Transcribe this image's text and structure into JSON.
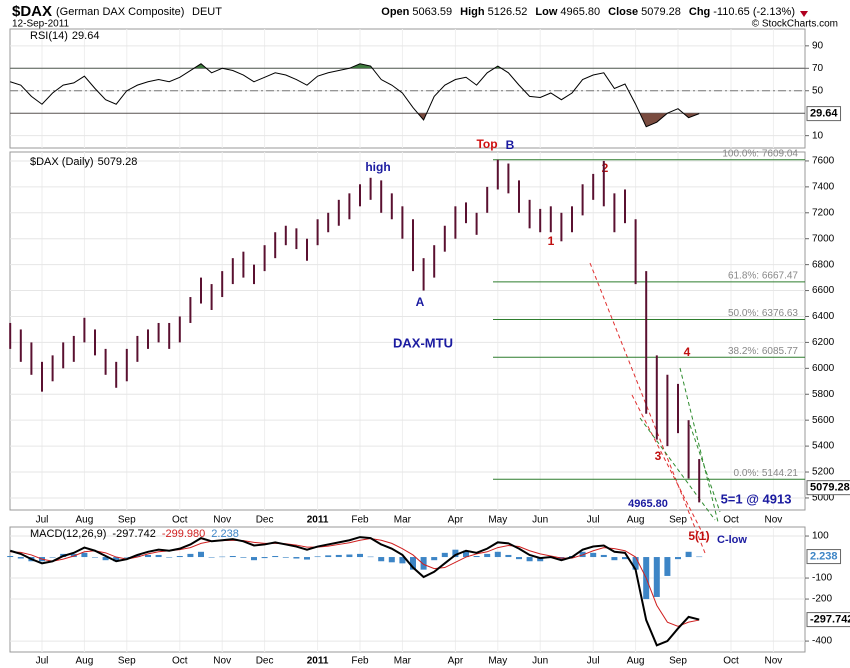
{
  "header": {
    "symbol": "$DAX",
    "name": "(German DAX Composite)",
    "exchange": "DEUT",
    "date": "12-Sep-2011",
    "source": "© StockCharts.com",
    "fields": [
      {
        "label": "Open",
        "value": "5063.59"
      },
      {
        "label": "High",
        "value": "5126.52"
      },
      {
        "label": "Low",
        "value": "4965.80"
      },
      {
        "label": "Close",
        "value": "5079.28"
      },
      {
        "label": "Chg",
        "value": "-110.65 (-2.13%)"
      }
    ]
  },
  "annotations": {
    "top": "Top",
    "b": "B",
    "high": "high",
    "a": "A",
    "w1": "1",
    "w2": "2",
    "w3": "3",
    "w4": "4",
    "w5": "5(1)",
    "mtu": "DAX-MTU",
    "low": "4965.80",
    "target": "5=1 @ 4913",
    "clow": "C-low"
  },
  "chart_data": [
    {
      "type": "ohlc",
      "title": "$DAX (Daily)",
      "last": 5079.28,
      "color": "#5a1030",
      "categories": [
        null,
        null,
        null,
        "Jul",
        null,
        null,
        null,
        "Aug",
        null,
        null,
        null,
        "Sep",
        null,
        null,
        null,
        null,
        "Oct",
        null,
        null,
        null,
        "Nov",
        null,
        null,
        null,
        "Dec",
        null,
        null,
        null,
        null,
        "2011",
        null,
        null,
        null,
        "Feb",
        null,
        null,
        null,
        "Mar",
        null,
        null,
        null,
        null,
        "Apr",
        null,
        null,
        null,
        "May",
        null,
        null,
        null,
        "Jun",
        null,
        null,
        null,
        null,
        "Jul",
        null,
        null,
        null,
        "Aug",
        null,
        null,
        null,
        "Sep",
        null,
        null,
        null,
        null,
        "Oct",
        null,
        null,
        null,
        "Nov",
        null,
        null
      ],
      "high": [
        6350,
        6300,
        6200,
        6050,
        6100,
        6200,
        6250,
        6390,
        6300,
        6150,
        6050,
        6150,
        6250,
        6300,
        6350,
        6350,
        6400,
        6550,
        6700,
        6650,
        6750,
        6850,
        6900,
        6800,
        6950,
        7050,
        7100,
        7080,
        7000,
        7150,
        7200,
        7300,
        7350,
        7420,
        7470,
        7450,
        7350,
        7250,
        7150,
        6850,
        6950,
        7100,
        7250,
        7280,
        7200,
        7400,
        7610,
        7580,
        7450,
        7300,
        7230,
        7250,
        7200,
        7250,
        7420,
        7500,
        7600,
        7350,
        7380,
        7150,
        6750,
        6100,
        5950,
        5880,
        5600,
        5300,
        null,
        null,
        null,
        null,
        null,
        null,
        null,
        null,
        null
      ],
      "low": [
        6150,
        6050,
        5950,
        5820,
        5900,
        6000,
        6050,
        6200,
        6100,
        5950,
        5850,
        5900,
        6050,
        6150,
        6200,
        6150,
        6200,
        6350,
        6500,
        6450,
        6550,
        6650,
        6700,
        6650,
        6750,
        6850,
        6950,
        6920,
        6830,
        6950,
        7050,
        7100,
        7150,
        7250,
        7300,
        7200,
        7150,
        7000,
        6750,
        6600,
        6700,
        6900,
        7000,
        7120,
        7030,
        7200,
        7380,
        7350,
        7200,
        7080,
        7050,
        7050,
        6980,
        7050,
        7180,
        7300,
        7250,
        7050,
        7120,
        6650,
        5650,
        5450,
        5400,
        5500,
        5150,
        4965.8,
        null,
        null,
        null,
        null,
        null,
        null,
        null,
        null,
        null
      ],
      "ylim": [
        4907,
        7669
      ],
      "yticks": [
        5000,
        5200,
        5400,
        5600,
        5800,
        6000,
        6200,
        6400,
        6600,
        6800,
        7000,
        7200,
        7400,
        7600
      ],
      "grid": true,
      "levels": [
        {
          "label": "100.0%: 7609.04",
          "value": 7609.04
        },
        {
          "label": "61.8%: 6667.47",
          "value": 6667.47
        },
        {
          "label": "50.0%: 6376.63",
          "value": 6376.63
        },
        {
          "label": "38.2%: 6085.77",
          "value": 6085.77
        },
        {
          "label": "0.0%: 5144.21",
          "value": 5144.21
        }
      ],
      "level_color": "#2e7d2e"
    },
    {
      "type": "line",
      "series": [
        {
          "name": "RSI(14)",
          "color": "#000",
          "values": [
            58,
            55,
            45,
            38,
            48,
            55,
            57,
            63,
            52,
            42,
            38,
            50,
            55,
            58,
            60,
            58,
            62,
            68,
            74,
            66,
            70,
            68,
            64,
            58,
            62,
            66,
            64,
            60,
            55,
            63,
            66,
            68,
            70,
            74,
            72,
            60,
            55,
            48,
            35,
            24,
            45,
            55,
            60,
            62,
            55,
            66,
            72,
            66,
            55,
            45,
            44,
            48,
            42,
            48,
            60,
            64,
            66,
            52,
            56,
            38,
            18,
            22,
            30,
            34,
            26,
            29.64,
            null,
            null,
            null,
            null,
            null,
            null,
            null,
            null,
            null
          ]
        }
      ],
      "ylim": [
        -1,
        105
      ],
      "yticks": [
        10,
        50,
        70,
        90
      ],
      "levels": [
        30,
        50,
        70
      ],
      "upper_fill": "#3f7a3f",
      "lower_fill": "#7a4c40"
    },
    {
      "type": "macd",
      "series": [
        {
          "name": "MACD(12,26,9)",
          "color": "#000",
          "values": [
            30,
            15,
            -10,
            -30,
            -20,
            5,
            20,
            45,
            30,
            5,
            -20,
            -10,
            10,
            25,
            35,
            30,
            40,
            60,
            90,
            75,
            80,
            85,
            75,
            55,
            60,
            70,
            60,
            50,
            35,
            50,
            60,
            70,
            80,
            95,
            90,
            60,
            40,
            10,
            -50,
            -95,
            -70,
            -30,
            10,
            30,
            20,
            40,
            70,
            65,
            40,
            10,
            -5,
            0,
            -15,
            0,
            35,
            50,
            55,
            25,
            20,
            -60,
            -300,
            -420,
            -400,
            -340,
            -285,
            -297.742,
            null,
            null,
            null,
            null,
            null,
            null,
            null,
            null,
            null
          ]
        },
        {
          "color": "#d02020",
          "last_label": "-299.980",
          "values": [
            25,
            22,
            10,
            -10,
            -20,
            -10,
            5,
            25,
            30,
            20,
            0,
            -10,
            0,
            15,
            25,
            30,
            35,
            45,
            65,
            75,
            78,
            80,
            78,
            70,
            65,
            65,
            63,
            57,
            47,
            47,
            52,
            60,
            68,
            80,
            88,
            80,
            65,
            40,
            10,
            -35,
            -55,
            -50,
            -25,
            0,
            15,
            25,
            45,
            55,
            50,
            30,
            15,
            5,
            -5,
            -5,
            10,
            30,
            45,
            40,
            30,
            0,
            -100,
            -230,
            -310,
            -330,
            -310,
            -299.98,
            null,
            null,
            null,
            null,
            null,
            null,
            null,
            null,
            null
          ]
        },
        {
          "color": "#3d85c6",
          "values": [
            5,
            -7,
            -20,
            -20,
            0,
            15,
            15,
            20,
            0,
            -15,
            -20,
            0,
            10,
            10,
            10,
            0,
            5,
            15,
            25,
            0,
            2,
            5,
            -3,
            -15,
            -5,
            5,
            -3,
            -7,
            -12,
            3,
            8,
            10,
            12,
            15,
            2,
            -20,
            -25,
            -30,
            -60,
            -60,
            -15,
            20,
            35,
            30,
            5,
            15,
            25,
            10,
            -10,
            -20,
            -20,
            -5,
            -10,
            5,
            25,
            20,
            10,
            -15,
            -10,
            -60,
            -200,
            -190,
            -90,
            -10,
            25,
            2.238,
            null,
            null,
            null,
            null,
            null,
            null,
            null,
            null,
            null
          ]
        }
      ],
      "ylim": [
        -452,
        143
      ],
      "yticks": [
        100,
        -100,
        -200,
        -400
      ]
    }
  ]
}
